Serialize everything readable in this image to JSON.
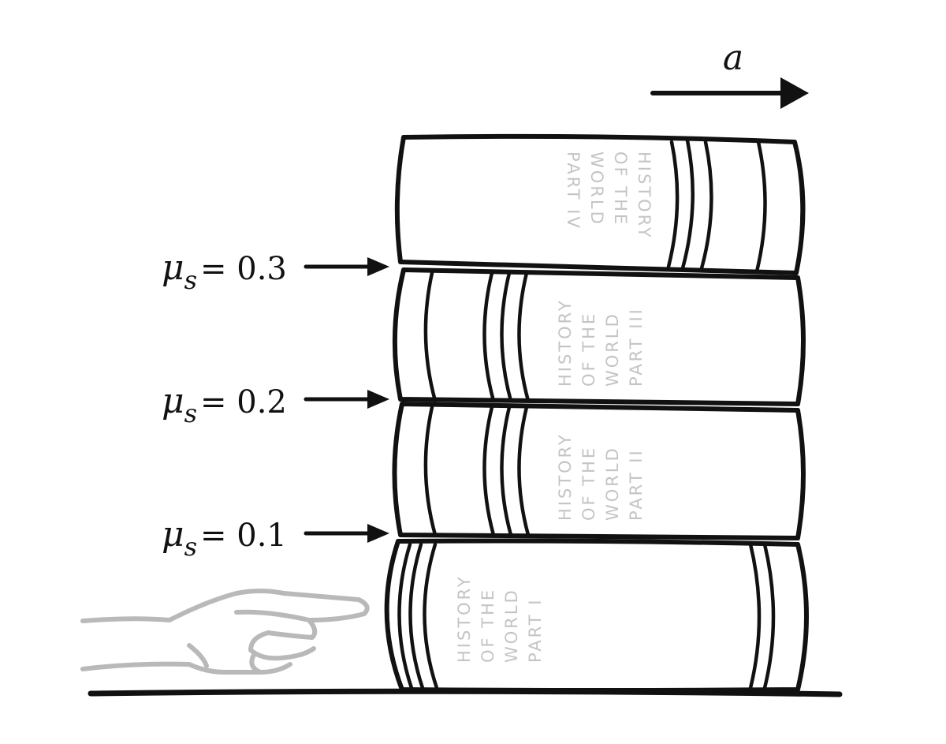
{
  "acceleration": {
    "label": "a"
  },
  "interfaces": [
    {
      "symbol": "μ",
      "subscript": "s",
      "equals_value": "= 0.3"
    },
    {
      "symbol": "μ",
      "subscript": "s",
      "equals_value": "= 0.2"
    },
    {
      "symbol": "μ",
      "subscript": "s",
      "equals_value": "= 0.1"
    }
  ],
  "books": [
    {
      "lines": [
        "HISTORY",
        "OF THE",
        "WORLD",
        "PART IV"
      ]
    },
    {
      "lines": [
        "HISTORY",
        "OF THE",
        "WORLD",
        "PART III"
      ]
    },
    {
      "lines": [
        "HISTORY",
        "OF THE",
        "WORLD",
        "PART II"
      ]
    },
    {
      "lines": [
        "HISTORY",
        "OF THE",
        "WORLD",
        "PART I"
      ]
    }
  ],
  "colors": {
    "ink": "#111111",
    "spine_text": "#c4c4c4",
    "hand": "#b9b9b9"
  }
}
